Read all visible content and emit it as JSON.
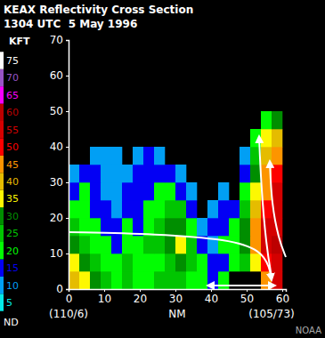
{
  "chart_data": {
    "type": "heatmap",
    "title": "KEAX Reflectivity Cross Section",
    "subtitle": "1304 UTC  5 May 1996",
    "x_label": "NM",
    "y_label": "KFT",
    "annotations": [
      "(110/6)",
      "(105/73)",
      "NOAA"
    ],
    "xlim": [
      0,
      61
    ],
    "xticks": [
      0,
      10,
      20,
      30,
      40,
      50,
      60
    ],
    "ylim": [
      0,
      70
    ],
    "yticks": [
      0,
      10,
      20,
      30,
      40,
      50,
      60,
      70
    ],
    "x_bins": [
      0,
      3,
      6,
      9,
      12,
      15,
      18,
      21,
      24,
      27,
      30,
      33,
      36,
      39,
      42,
      45,
      48,
      51,
      54,
      57,
      60
    ],
    "y_bins": [
      0,
      5,
      10,
      15,
      20,
      25,
      30,
      35,
      40,
      45,
      50
    ],
    "values": [
      [
        40,
        35,
        30,
        25,
        20,
        25,
        20,
        20,
        25,
        25,
        25,
        20,
        20,
        15,
        20,
        null,
        null,
        null,
        45,
        55
      ],
      [
        35,
        30,
        25,
        20,
        20,
        25,
        20,
        20,
        20,
        25,
        30,
        25,
        20,
        15,
        15,
        20,
        25,
        35,
        50,
        55
      ],
      [
        30,
        25,
        20,
        20,
        15,
        20,
        20,
        25,
        25,
        30,
        35,
        25,
        15,
        10,
        20,
        20,
        30,
        45,
        55,
        60
      ],
      [
        25,
        20,
        20,
        15,
        15,
        20,
        15,
        20,
        25,
        30,
        30,
        20,
        10,
        15,
        15,
        20,
        30,
        45,
        55,
        55
      ],
      [
        20,
        20,
        15,
        15,
        10,
        15,
        15,
        20,
        20,
        25,
        25,
        15,
        null,
        10,
        15,
        15,
        25,
        40,
        50,
        55
      ],
      [
        15,
        20,
        15,
        10,
        10,
        15,
        15,
        15,
        20,
        20,
        15,
        10,
        null,
        null,
        10,
        null,
        20,
        35,
        45,
        55
      ],
      [
        10,
        15,
        15,
        10,
        10,
        10,
        15,
        15,
        15,
        15,
        10,
        null,
        null,
        null,
        null,
        null,
        15,
        30,
        45,
        50
      ],
      [
        null,
        null,
        10,
        10,
        10,
        null,
        10,
        15,
        10,
        null,
        null,
        null,
        null,
        null,
        null,
        null,
        10,
        25,
        40,
        45
      ],
      [
        null,
        null,
        null,
        null,
        null,
        null,
        null,
        null,
        null,
        null,
        null,
        null,
        null,
        null,
        null,
        null,
        null,
        20,
        35,
        40
      ],
      [
        null,
        null,
        null,
        null,
        null,
        null,
        null,
        null,
        null,
        null,
        null,
        null,
        null,
        null,
        null,
        null,
        null,
        null,
        20,
        30
      ]
    ],
    "colorbar": {
      "ticks": [
        5,
        10,
        15,
        20,
        25,
        30,
        35,
        40,
        45,
        50,
        55,
        60,
        65,
        70,
        75
      ],
      "colors": [
        "#04e9e7",
        "#019ff4",
        "#0300f4",
        "#02fd02",
        "#01c501",
        "#008e00",
        "#fdf802",
        "#e5bc00",
        "#fd9500",
        "#fd0000",
        "#d40000",
        "#bc0000",
        "#f800fd",
        "#9854c6",
        "#fdfdfd"
      ],
      "no_data_label": "ND"
    }
  }
}
